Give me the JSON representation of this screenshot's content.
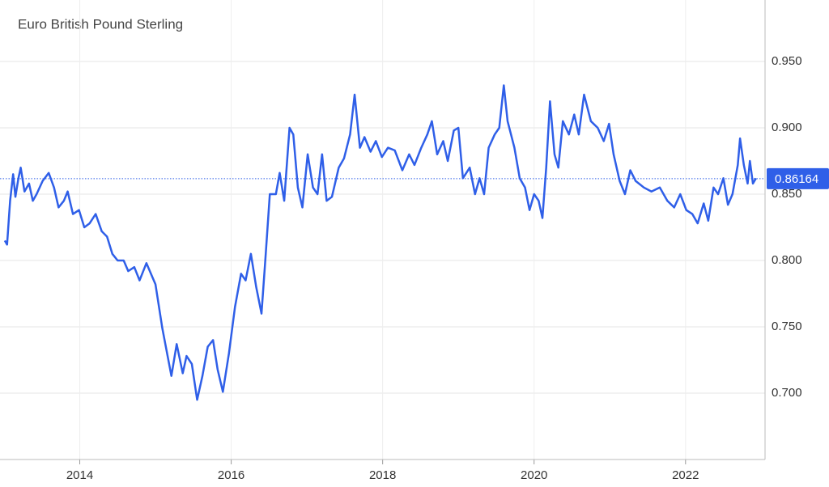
{
  "chart_data": {
    "type": "line",
    "title": "Euro British Pound Sterling",
    "x": [
      2013.01,
      2013.04,
      2013.08,
      2013.12,
      2013.15,
      2013.19,
      2013.22,
      2013.27,
      2013.33,
      2013.38,
      2013.43,
      2013.51,
      2013.59,
      2013.66,
      2013.72,
      2013.79,
      2013.84,
      2013.91,
      2013.99,
      2014.06,
      2014.13,
      2014.21,
      2014.29,
      2014.36,
      2014.43,
      2014.5,
      2014.58,
      2014.64,
      2014.72,
      2014.79,
      2014.88,
      2014.94,
      2015.0,
      2015.09,
      2015.21,
      2015.28,
      2015.36,
      2015.41,
      2015.48,
      2015.55,
      2015.62,
      2015.69,
      2015.76,
      2015.82,
      2015.89,
      2015.97,
      2016.05,
      2016.13,
      2016.19,
      2016.26,
      2016.33,
      2016.4,
      2016.45,
      2016.51,
      2016.59,
      2016.64,
      2016.7,
      2016.77,
      2016.82,
      2016.88,
      2016.94,
      2017.01,
      2017.08,
      2017.14,
      2017.2,
      2017.26,
      2017.33,
      2017.42,
      2017.49,
      2017.57,
      2017.63,
      2017.7,
      2017.76,
      2017.84,
      2017.91,
      2017.99,
      2018.07,
      2018.16,
      2018.26,
      2018.35,
      2018.42,
      2018.51,
      2018.59,
      2018.65,
      2018.72,
      2018.8,
      2018.86,
      2018.94,
      2019.0,
      2019.06,
      2019.15,
      2019.22,
      2019.28,
      2019.34,
      2019.4,
      2019.48,
      2019.54,
      2019.6,
      2019.65,
      2019.74,
      2019.81,
      2019.88,
      2019.94,
      2020.0,
      2020.06,
      2020.11,
      2020.16,
      2020.21,
      2020.27,
      2020.32,
      2020.38,
      2020.46,
      2020.53,
      2020.59,
      2020.66,
      2020.75,
      2020.84,
      2020.92,
      2020.99,
      2021.05,
      2021.13,
      2021.2,
      2021.27,
      2021.34,
      2021.45,
      2021.55,
      2021.66,
      2021.76,
      2021.85,
      2021.93,
      2022.01,
      2022.09,
      2022.16,
      2022.24,
      2022.3,
      2022.37,
      2022.43,
      2022.5,
      2022.56,
      2022.62,
      2022.69,
      2022.72,
      2022.77,
      2022.82,
      2022.85,
      2022.89,
      2022.93
    ],
    "series": [
      {
        "name": "Euro British Pound Sterling",
        "color": "#2f5fe8",
        "values": [
          0.815,
          0.812,
          0.845,
          0.865,
          0.848,
          0.862,
          0.87,
          0.852,
          0.858,
          0.845,
          0.85,
          0.86,
          0.866,
          0.855,
          0.84,
          0.845,
          0.852,
          0.835,
          0.838,
          0.825,
          0.828,
          0.835,
          0.822,
          0.818,
          0.805,
          0.8,
          0.8,
          0.792,
          0.795,
          0.785,
          0.798,
          0.79,
          0.782,
          0.749,
          0.713,
          0.737,
          0.715,
          0.728,
          0.722,
          0.695,
          0.713,
          0.735,
          0.74,
          0.718,
          0.701,
          0.73,
          0.765,
          0.79,
          0.785,
          0.805,
          0.78,
          0.76,
          0.8,
          0.85,
          0.85,
          0.866,
          0.845,
          0.9,
          0.895,
          0.855,
          0.84,
          0.88,
          0.855,
          0.85,
          0.88,
          0.845,
          0.848,
          0.87,
          0.877,
          0.895,
          0.925,
          0.885,
          0.893,
          0.882,
          0.89,
          0.878,
          0.885,
          0.883,
          0.868,
          0.88,
          0.872,
          0.885,
          0.895,
          0.905,
          0.88,
          0.89,
          0.875,
          0.898,
          0.9,
          0.862,
          0.87,
          0.85,
          0.862,
          0.85,
          0.885,
          0.895,
          0.9,
          0.932,
          0.905,
          0.885,
          0.862,
          0.855,
          0.838,
          0.85,
          0.845,
          0.832,
          0.87,
          0.92,
          0.88,
          0.87,
          0.905,
          0.895,
          0.91,
          0.895,
          0.925,
          0.905,
          0.9,
          0.89,
          0.903,
          0.88,
          0.86,
          0.85,
          0.868,
          0.86,
          0.855,
          0.852,
          0.855,
          0.845,
          0.84,
          0.85,
          0.838,
          0.835,
          0.828,
          0.843,
          0.83,
          0.855,
          0.85,
          0.862,
          0.842,
          0.85,
          0.872,
          0.892,
          0.872,
          0.858,
          0.875,
          0.858,
          0.862
        ]
      }
    ],
    "last_value": 0.86164,
    "xlim": [
      2013,
      2023.05
    ],
    "xticks": [
      2014,
      2016,
      2018,
      2020,
      2022
    ],
    "ylim": [
      0.65,
      0.99
    ],
    "yticks": [
      {
        "value": 0.7,
        "label": "0.700"
      },
      {
        "value": 0.75,
        "label": "0.750"
      },
      {
        "value": 0.8,
        "label": "0.800"
      },
      {
        "value": 0.85,
        "label": "0.850"
      },
      {
        "value": 0.9,
        "label": "0.900"
      },
      {
        "value": 0.95,
        "label": "0.950"
      }
    ],
    "grid": true
  }
}
